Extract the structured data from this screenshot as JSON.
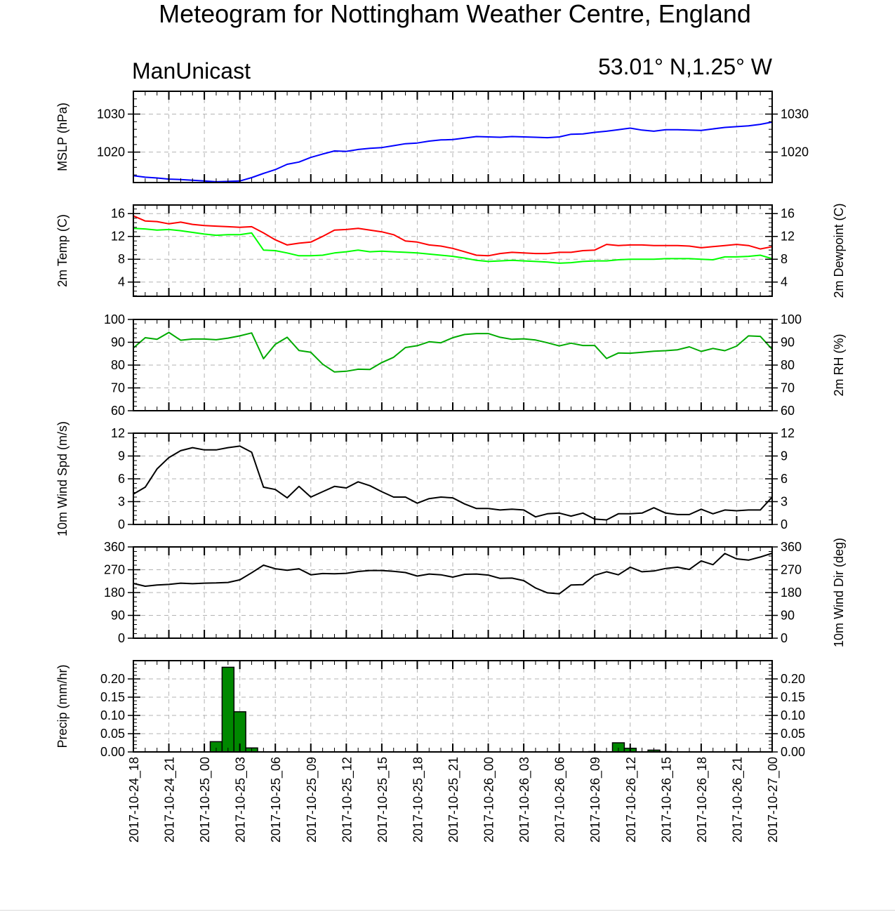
{
  "title": "Meteogram for Nottingham Weather Centre, England",
  "subtitle_left": "ManUnicast",
  "subtitle_right": "53.01° N,1.25° W",
  "x_tick_labels": [
    "2017-10-24_18",
    "2017-10-24_21",
    "2017-10-25_00",
    "2017-10-25_03",
    "2017-10-25_06",
    "2017-10-25_09",
    "2017-10-25_12",
    "2017-10-25_15",
    "2017-10-25_18",
    "2017-10-25_21",
    "2017-10-26_00",
    "2017-10-26_03",
    "2017-10-26_06",
    "2017-10-26_09",
    "2017-10-26_12",
    "2017-10-26_15",
    "2017-10-26_18",
    "2017-10-26_21",
    "2017-10-27_00"
  ],
  "colors": {
    "mslp": "#0000ff",
    "temp": "#ff0000",
    "dewpoint": "#00ff00",
    "rh": "#00aa00",
    "wind": "#000000",
    "precip_fill": "#008800",
    "grid": "#b3b3b3"
  },
  "chart_data": [
    {
      "type": "line",
      "panel": "mslp",
      "ylabel_left": "MSLP (hPa)",
      "ylim": [
        1012,
        1036
      ],
      "yticks": [
        1020,
        1030
      ],
      "ytick_labels_left": [
        "1020",
        "1030"
      ],
      "ytick_labels_right": [
        "1020",
        "1030"
      ],
      "x_hours": [
        0,
        1,
        2,
        3,
        4,
        5,
        6,
        7,
        8,
        9,
        10,
        11,
        12,
        13,
        14,
        15,
        16,
        17,
        18,
        19,
        20,
        21,
        22,
        23,
        24,
        25,
        26,
        27,
        28,
        29,
        30,
        31,
        32,
        33,
        34,
        35,
        36,
        37,
        38,
        39,
        40,
        41,
        42,
        43,
        44,
        45,
        46,
        47,
        48,
        49,
        50,
        51,
        52,
        53,
        54
      ],
      "series": [
        {
          "color_key": "mslp",
          "values": [
            1013.8,
            1013.4,
            1013.2,
            1012.9,
            1012.8,
            1012.6,
            1012.4,
            1012.2,
            1012.3,
            1012.4,
            1013.3,
            1014.4,
            1015.4,
            1016.8,
            1017.4,
            1018.6,
            1019.5,
            1020.3,
            1020.2,
            1020.7,
            1021.0,
            1021.2,
            1021.7,
            1022.2,
            1022.4,
            1022.9,
            1023.2,
            1023.3,
            1023.7,
            1024.1,
            1024.0,
            1023.9,
            1024.1,
            1024.0,
            1023.9,
            1023.8,
            1024.0,
            1024.7,
            1024.8,
            1025.2,
            1025.5,
            1025.9,
            1026.3,
            1025.8,
            1025.5,
            1025.9,
            1025.9,
            1025.8,
            1025.7,
            1026.1,
            1026.5,
            1026.7,
            1026.9,
            1027.3,
            1027.9
          ]
        }
      ]
    },
    {
      "type": "line",
      "panel": "temperature",
      "ylabel_left": "2m Temp (C)",
      "ylabel_right": "2m Dewpoint (C)",
      "ylim": [
        1.5,
        17.5
      ],
      "yticks": [
        4,
        8,
        12,
        16
      ],
      "ytick_labels_left": [
        "4",
        "8",
        "12",
        "16"
      ],
      "ytick_labels_right": [
        "4",
        "8",
        "12",
        "16"
      ],
      "x_hours": [
        0,
        1,
        2,
        3,
        4,
        5,
        6,
        7,
        8,
        9,
        10,
        11,
        12,
        13,
        14,
        15,
        16,
        17,
        18,
        19,
        20,
        21,
        22,
        23,
        24,
        25,
        26,
        27,
        28,
        29,
        30,
        31,
        32,
        33,
        34,
        35,
        36,
        37,
        38,
        39,
        40,
        41,
        42,
        43,
        44,
        45,
        46,
        47,
        48,
        49,
        50,
        51,
        52,
        53,
        54
      ],
      "series": [
        {
          "color_key": "temp",
          "values": [
            15.6,
            14.7,
            14.6,
            14.2,
            14.5,
            14.1,
            13.9,
            13.8,
            13.7,
            13.6,
            13.7,
            12.6,
            11.4,
            10.5,
            10.8,
            11.0,
            12.0,
            13.1,
            13.2,
            13.4,
            13.1,
            12.8,
            12.3,
            11.2,
            11.0,
            10.5,
            10.3,
            9.9,
            9.3,
            8.7,
            8.6,
            9.0,
            9.2,
            9.1,
            9.0,
            9.0,
            9.2,
            9.2,
            9.5,
            9.6,
            10.6,
            10.4,
            10.5,
            10.5,
            10.4,
            10.4,
            10.4,
            10.3,
            10.0,
            10.2,
            10.4,
            10.6,
            10.4,
            9.8,
            10.2
          ]
        },
        {
          "color_key": "dewpoint",
          "values": [
            13.4,
            13.3,
            13.1,
            13.2,
            13.0,
            12.7,
            12.4,
            12.2,
            12.3,
            12.3,
            12.6,
            9.6,
            9.5,
            9.1,
            8.6,
            8.6,
            8.7,
            9.1,
            9.3,
            9.6,
            9.3,
            9.4,
            9.3,
            9.2,
            9.1,
            8.9,
            8.7,
            8.5,
            8.2,
            7.8,
            7.6,
            7.7,
            7.8,
            7.7,
            7.6,
            7.5,
            7.3,
            7.4,
            7.6,
            7.7,
            7.7,
            7.9,
            8.0,
            8.0,
            8.0,
            8.1,
            8.1,
            8.1,
            8.0,
            7.9,
            8.4,
            8.4,
            8.5,
            8.7,
            8.1
          ]
        }
      ]
    },
    {
      "type": "line",
      "panel": "relative_humidity",
      "ylabel_right": "2m RH (%)",
      "ylim": [
        60,
        100
      ],
      "yticks": [
        60,
        70,
        80,
        90,
        100
      ],
      "ytick_labels_left": [
        "60",
        "70",
        "80",
        "90",
        "100"
      ],
      "ytick_labels_right": [
        "60",
        "70",
        "80",
        "90",
        "100"
      ],
      "x_hours": [
        0,
        1,
        2,
        3,
        4,
        5,
        6,
        7,
        8,
        9,
        10,
        11,
        12,
        13,
        14,
        15,
        16,
        17,
        18,
        19,
        20,
        21,
        22,
        23,
        24,
        25,
        26,
        27,
        28,
        29,
        30,
        31,
        32,
        33,
        34,
        35,
        36,
        37,
        38,
        39,
        40,
        41,
        42,
        43,
        44,
        45,
        46,
        47,
        48,
        49,
        50,
        51,
        52,
        53,
        54
      ],
      "series": [
        {
          "color_key": "rh",
          "values": [
            87.5,
            92.0,
            91.3,
            94.3,
            90.9,
            91.4,
            91.4,
            91.1,
            91.8,
            92.8,
            94.1,
            82.8,
            89.1,
            92.2,
            86.4,
            85.6,
            80.4,
            77.0,
            77.3,
            78.2,
            78.1,
            81.1,
            83.4,
            87.7,
            88.5,
            90.2,
            89.8,
            92.0,
            93.4,
            93.8,
            93.8,
            92.2,
            91.3,
            91.5,
            91.0,
            89.8,
            88.4,
            89.6,
            88.6,
            88.6,
            82.9,
            85.3,
            85.2,
            85.6,
            86.1,
            86.3,
            86.7,
            88.0,
            86.0,
            87.3,
            86.3,
            88.3,
            92.8,
            92.6,
            86.9
          ]
        }
      ]
    },
    {
      "type": "line",
      "panel": "wind_speed",
      "ylabel_left": "10m Wind Spd (m/s)",
      "ylim": [
        0,
        12
      ],
      "yticks": [
        0,
        3,
        6,
        9,
        12
      ],
      "ytick_labels_left": [
        "0",
        "3",
        "6",
        "9",
        "12"
      ],
      "ytick_labels_right": [
        "0",
        "3",
        "6",
        "9",
        "12"
      ],
      "x_hours": [
        0,
        1,
        2,
        3,
        4,
        5,
        6,
        7,
        8,
        9,
        10,
        11,
        12,
        13,
        14,
        15,
        16,
        17,
        18,
        19,
        20,
        21,
        22,
        23,
        24,
        25,
        26,
        27,
        28,
        29,
        30,
        31,
        32,
        33,
        34,
        35,
        36,
        37,
        38,
        39,
        40,
        41,
        42,
        43,
        44,
        45,
        46,
        47,
        48,
        49,
        50,
        51,
        52,
        53,
        54
      ],
      "series": [
        {
          "color_key": "wind",
          "values": [
            4.0,
            4.9,
            7.3,
            8.8,
            9.7,
            10.1,
            9.8,
            9.8,
            10.1,
            10.3,
            9.5,
            4.9,
            4.6,
            3.5,
            5.0,
            3.6,
            4.3,
            5.0,
            4.8,
            5.6,
            5.1,
            4.3,
            3.6,
            3.6,
            2.8,
            3.4,
            3.6,
            3.5,
            2.7,
            2.1,
            2.1,
            1.9,
            2.0,
            1.9,
            1.0,
            1.4,
            1.5,
            1.1,
            1.5,
            0.7,
            0.6,
            1.4,
            1.4,
            1.5,
            2.2,
            1.5,
            1.3,
            1.3,
            2.0,
            1.4,
            1.9,
            1.8,
            1.9,
            1.9,
            3.6
          ]
        }
      ]
    },
    {
      "type": "line",
      "panel": "wind_direction",
      "ylabel_right": "10m Wind Dir (deg)",
      "ylim": [
        0,
        360
      ],
      "yticks": [
        0,
        90,
        180,
        270,
        360
      ],
      "ytick_labels_left": [
        "0",
        "90",
        "180",
        "270",
        "360"
      ],
      "ytick_labels_right": [
        "0",
        "90",
        "180",
        "270",
        "360"
      ],
      "x_hours": [
        0,
        1,
        2,
        3,
        4,
        5,
        6,
        7,
        8,
        9,
        10,
        11,
        12,
        13,
        14,
        15,
        16,
        17,
        18,
        19,
        20,
        21,
        22,
        23,
        24,
        25,
        26,
        27,
        28,
        29,
        30,
        31,
        32,
        33,
        34,
        35,
        36,
        37,
        38,
        39,
        40,
        41,
        42,
        43,
        44,
        45,
        46,
        47,
        48,
        49,
        50,
        51,
        52,
        53,
        54
      ],
      "series": [
        {
          "color_key": "wind",
          "values": [
            216,
            205,
            210,
            212,
            217,
            215,
            217,
            218,
            220,
            230,
            258,
            288,
            274,
            268,
            274,
            250,
            255,
            254,
            256,
            263,
            267,
            267,
            264,
            259,
            245,
            253,
            250,
            241,
            252,
            253,
            249,
            236,
            237,
            227,
            198,
            179,
            175,
            210,
            211,
            248,
            262,
            250,
            280,
            262,
            265,
            275,
            280,
            271,
            305,
            290,
            334,
            313,
            308,
            320,
            335
          ]
        }
      ]
    },
    {
      "type": "bar",
      "panel": "precipitation",
      "ylabel_left": "Precip (mm/hr)",
      "ylim": [
        0,
        0.25
      ],
      "yticks": [
        0.0,
        0.05,
        0.1,
        0.15,
        0.2
      ],
      "ytick_labels_left": [
        "0.00",
        "0.05",
        "0.10",
        "0.15",
        "0.20"
      ],
      "ytick_labels_right": [
        "0.00",
        "0.05",
        "0.10",
        "0.15",
        "0.20"
      ],
      "bars": [
        {
          "hour": 7,
          "value": 0.028
        },
        {
          "hour": 8,
          "value": 0.232
        },
        {
          "hour": 9,
          "value": 0.11
        },
        {
          "hour": 10,
          "value": 0.011
        },
        {
          "hour": 39,
          "value": 0.001
        },
        {
          "hour": 41,
          "value": 0.025
        },
        {
          "hour": 42,
          "value": 0.01
        },
        {
          "hour": 44,
          "value": 0.005
        },
        {
          "hour": 45,
          "value": 0.001
        }
      ]
    }
  ]
}
